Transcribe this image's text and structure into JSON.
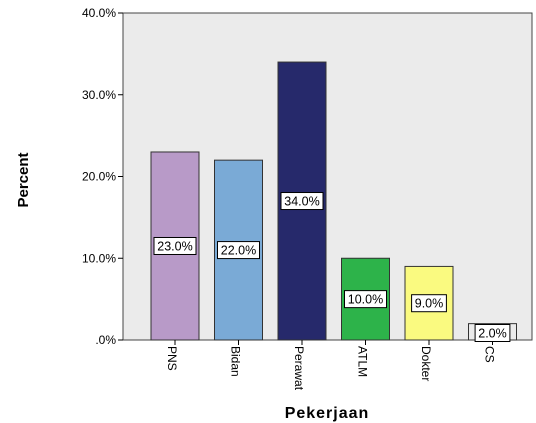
{
  "chart_data": {
    "type": "bar",
    "categories": [
      "PNS",
      "Bidan",
      "Perawat",
      "ATLM",
      "Dokter",
      "CS"
    ],
    "values": [
      23.0,
      22.0,
      34.0,
      10.0,
      9.0,
      2.0
    ],
    "data_labels": [
      "23.0%",
      "22.0%",
      "34.0%",
      "10.0%",
      "9.0%",
      "2.0%"
    ],
    "colors": [
      "#b89ac8",
      "#7aaad6",
      "#26296b",
      "#2db34a",
      "#fafa80",
      "#ebebeb"
    ],
    "ylim": [
      0,
      40
    ],
    "yticks": [
      0,
      10,
      20,
      30,
      40
    ],
    "ytick_labels": [
      ".0%",
      "10.0%",
      "20.0%",
      "30.0%",
      "40.0%"
    ],
    "xlabel": "Pekerjaan",
    "ylabel": "Percent",
    "title": "",
    "grid": false,
    "plot_background": "#ebebeb"
  }
}
